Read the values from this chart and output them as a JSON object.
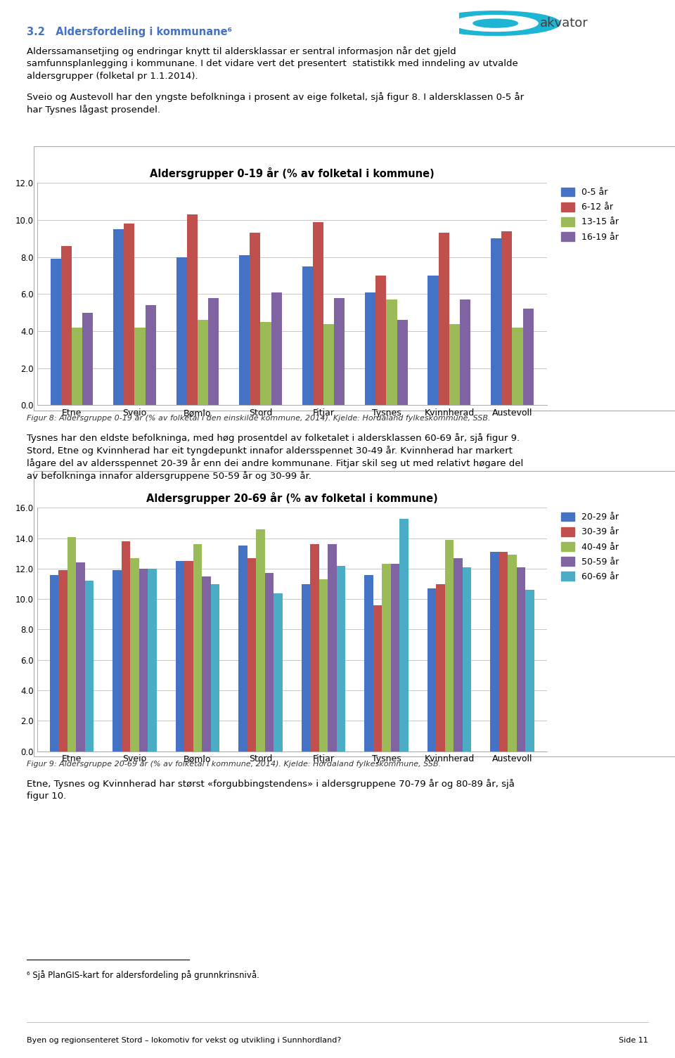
{
  "page_title_heading": "3.2   Aldersfordeling i kommunane⁶",
  "page_text1": "Alderssamansetjing og endringar knytt til aldersklassar er sentral informasjon når det gjeld samfunnsplanlegging i kommunane. I det vidare vert det presentert  statistikk med inndeling av utvalde aldersgrupper (folketal pr 1.1.2014).",
  "page_text2": "Sveio og Austevoll har den yngste befolkninga i prosent av eige folketal, sjå figur 8. I aldersklassen 0-5 år har Tysnes lågast prosendel.",
  "page_text3": "Tysnes har den eldste befolkninga, med høg prosentdel av folketalet i aldersklassen 60-69 år, sjå figur 9. Stord, Etne og Kvinnherad har eit tyngdepunkt innafor aldersspennet 30-49 år. Kvinnherad har markert lågare del av aldersspennet 20-39 år enn dei andre kommunane. Fitjar skil seg ut med relativt høgare del av befolkninga innafor aldersgruppene 50-59 år og 30-99 år.",
  "page_text4": "Etne, Tysnes og Kvinnherad har størst «forgubbingstendens» i aldersgruppene 70-79 år og 80-89 år, sjå figur 10.",
  "caption1": "Figur 8: Aldersgruppe 0-19 år (% av folketal i den einskilde kommune, 2014). Kjelde: Hordaland fylkeskommune, SSB.",
  "caption2": "Figur 9: Aldersgruppe 20-69 år (% av folketal i kommune, 2014). Kjelde: Hordaland fylkeskommune, SSB.",
  "footnote": "⁶ Sjå PlanGIS-kart for aldersfordeling på grunnkrinsnivå.",
  "footer_text": "Byen og regionsenteret Stord – lokomotiv for vekst og utvikling i Sunnhordland?",
  "footer_right": "Side 11",
  "chart1": {
    "title": "Aldersgrupper 0-19 år (% av folketal i kommune)",
    "categories": [
      "Etne",
      "Sveio",
      "Bømlo",
      "Stord",
      "Fitjar",
      "Tysnes",
      "Kvinnherad",
      "Austevoll"
    ],
    "series": [
      {
        "name": "0-5 år",
        "color": "#4472C4",
        "values": [
          7.9,
          9.5,
          8.0,
          8.1,
          7.5,
          6.1,
          7.0,
          9.0
        ]
      },
      {
        "name": "6-12 år",
        "color": "#C0504D",
        "values": [
          8.6,
          9.8,
          10.3,
          9.3,
          9.9,
          7.0,
          9.3,
          9.4
        ]
      },
      {
        "name": "13-15 år",
        "color": "#9BBB59",
        "values": [
          4.2,
          4.2,
          4.6,
          4.5,
          4.4,
          5.7,
          4.4,
          4.2
        ]
      },
      {
        "name": "16-19 år",
        "color": "#8064A2",
        "values": [
          5.0,
          5.4,
          5.8,
          6.1,
          5.8,
          4.6,
          5.7,
          5.2
        ]
      }
    ],
    "ylim": [
      0.0,
      12.0
    ],
    "yticks": [
      0.0,
      2.0,
      4.0,
      6.0,
      8.0,
      10.0,
      12.0
    ]
  },
  "chart2": {
    "title": "Aldersgrupper 20-69 år (% av folketal i kommune)",
    "categories": [
      "Etne",
      "Sveio",
      "Bømlo",
      "Stord",
      "Fitjar",
      "Tysnes",
      "Kvinnherad",
      "Austevoll"
    ],
    "series": [
      {
        "name": "20-29 år",
        "color": "#4472C4",
        "values": [
          11.6,
          11.9,
          12.5,
          13.5,
          11.0,
          11.6,
          10.7,
          13.1
        ]
      },
      {
        "name": "30-39 år",
        "color": "#C0504D",
        "values": [
          11.9,
          13.8,
          12.5,
          12.7,
          13.6,
          9.6,
          11.0,
          13.1
        ]
      },
      {
        "name": "40-49 år",
        "color": "#9BBB59",
        "values": [
          14.1,
          12.7,
          13.6,
          14.6,
          11.3,
          12.3,
          13.9,
          12.9
        ]
      },
      {
        "name": "50-59 år",
        "color": "#8064A2",
        "values": [
          12.4,
          12.0,
          11.5,
          11.7,
          13.6,
          12.3,
          12.7,
          12.1
        ]
      },
      {
        "name": "60-69 år",
        "color": "#4BACC6",
        "values": [
          11.2,
          12.0,
          11.0,
          10.4,
          12.2,
          15.3,
          12.1,
          10.6
        ]
      }
    ],
    "ylim": [
      0.0,
      16.0
    ],
    "yticks": [
      0.0,
      2.0,
      4.0,
      6.0,
      8.0,
      10.0,
      12.0,
      14.0,
      16.0
    ]
  },
  "heading_color": "#4472C4",
  "background_color": "#FFFFFF",
  "chart_bg": "#FFFFFF",
  "chart_border": "#AAAAAA",
  "grid_color": "#C8C8C8",
  "text_color": "#000000"
}
